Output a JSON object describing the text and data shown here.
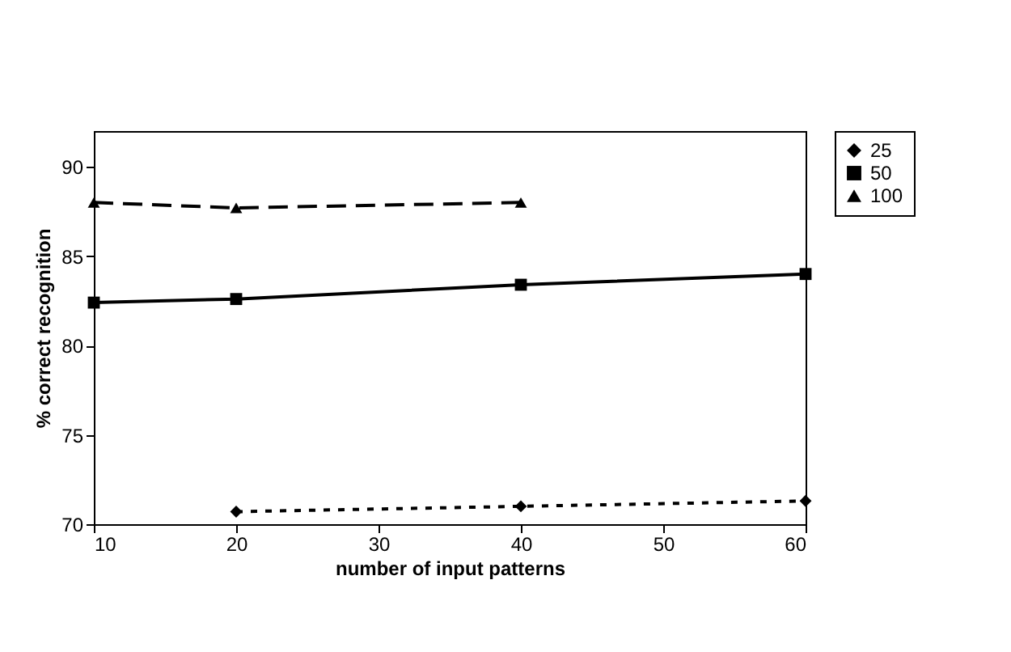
{
  "chart_data": {
    "type": "line",
    "xlabel": "number of input patterns",
    "ylabel": "% correct recognition",
    "xlim": [
      10,
      60
    ],
    "xticks": [
      10,
      20,
      30,
      40,
      50,
      60
    ],
    "ylim": [
      70,
      92
    ],
    "yticks": [
      70,
      75,
      80,
      85,
      90
    ],
    "grid": false,
    "legend": "right",
    "series": [
      {
        "name": "25",
        "color": "#000000",
        "marker": "diamond",
        "line_style": "dotted",
        "x": [
          20,
          40,
          60
        ],
        "values": [
          70.7,
          71.0,
          71.3
        ]
      },
      {
        "name": "50",
        "color": "#000000",
        "marker": "square",
        "line_style": "solid",
        "x": [
          10,
          20,
          40,
          60
        ],
        "values": [
          82.4,
          82.6,
          83.4,
          84.0
        ]
      },
      {
        "name": "100",
        "color": "#000000",
        "marker": "triangle",
        "line_style": "dashed",
        "x": [
          10,
          20,
          40
        ],
        "values": [
          88.0,
          87.7,
          88.0
        ]
      }
    ]
  }
}
